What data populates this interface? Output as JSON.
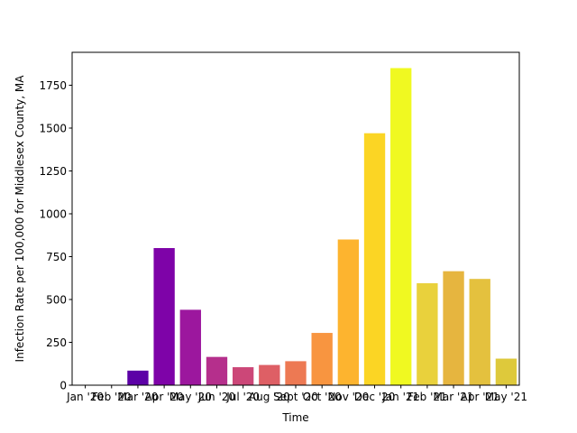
{
  "chart_data": {
    "type": "bar",
    "title": "",
    "xlabel": "Time",
    "ylabel": "Infection Rate per 100,000 for Middlesex County, MA",
    "categories": [
      "Jan '20",
      "Feb '20",
      "Mar '20",
      "Apr '20",
      "May '20",
      "Jun '20",
      "Jul '20",
      "Aug '20",
      "Sept '20",
      "Oct '20",
      "Nov '20",
      "Dec '20",
      "Jan '21",
      "Feb '21",
      "Mar '21",
      "Apr '21",
      "May '21"
    ],
    "values": [
      0,
      0,
      85,
      800,
      440,
      165,
      105,
      118,
      140,
      305,
      850,
      1470,
      1850,
      595,
      665,
      620,
      155
    ],
    "ylim": [
      0,
      1942
    ],
    "yticks": [
      0,
      250,
      500,
      750,
      1000,
      1250,
      1500,
      1750
    ],
    "ytick_labels": [
      "0",
      "250",
      "500",
      "750",
      "1000",
      "1250",
      "1500",
      "1750"
    ],
    "grid": false,
    "colormap": "plasma",
    "bar_colors": [
      "#0d0887",
      "#3a049a",
      "#5c01a6",
      "#7e03a8",
      "#9c179e",
      "#b52f8c",
      "#cc4778",
      "#de5f65",
      "#ed7953",
      "#f89540",
      "#fdb42f",
      "#fbd524",
      "#f0f921",
      "#e9d13c",
      "#e6b53f",
      "#e4c13e",
      "#dec93b"
    ]
  }
}
